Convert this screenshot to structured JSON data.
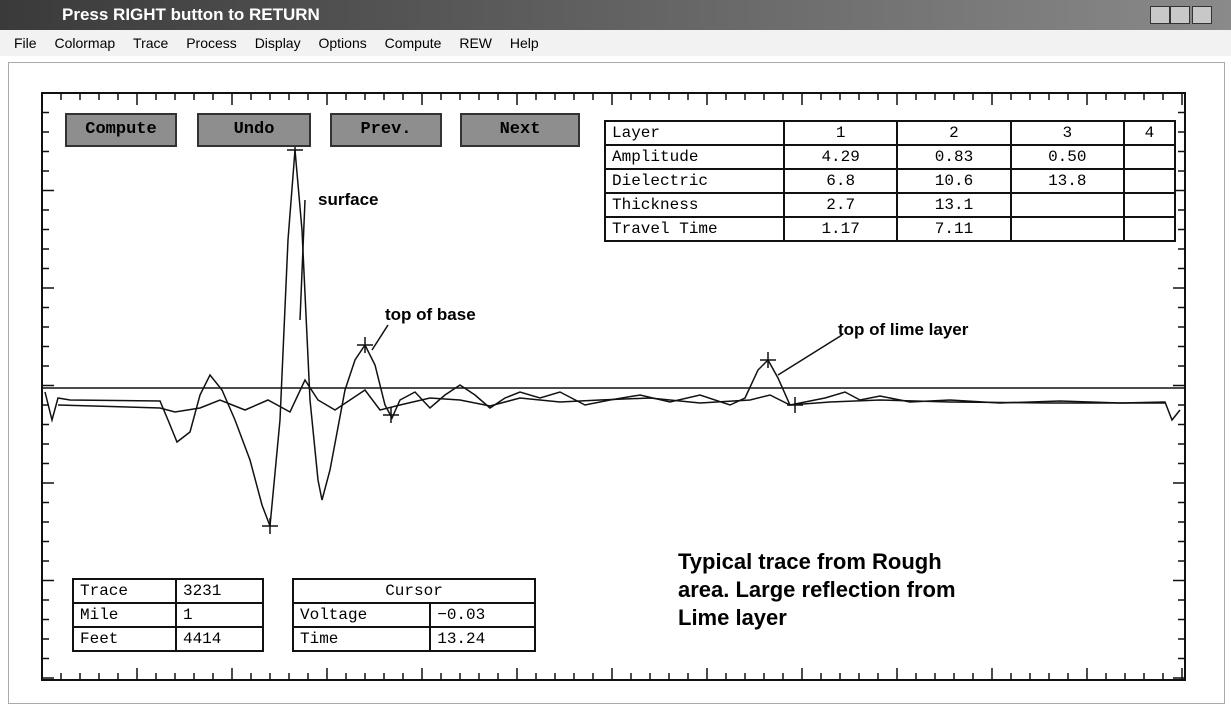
{
  "window": {
    "title": "Press RIGHT button to RETURN"
  },
  "menu": [
    "File",
    "Colormap",
    "Trace",
    "Process",
    "Display",
    "Options",
    "Compute",
    "REW",
    "Help"
  ],
  "buttons": [
    "Compute",
    "Undo",
    "Prev.",
    "Next"
  ],
  "layer_table": {
    "header": [
      "Layer",
      "1",
      "2",
      "3",
      "4"
    ],
    "rows": [
      [
        "Amplitude",
        "4.29",
        "0.83",
        "0.50"
      ],
      [
        "Dielectric",
        "6.8",
        "10.6",
        "13.8"
      ],
      [
        "Thickness",
        "2.7",
        "13.1"
      ],
      [
        "Travel Time",
        "1.17",
        "7.11"
      ]
    ]
  },
  "annotations": [
    "surface",
    "top of base",
    "top of lime layer"
  ],
  "trace_table": [
    [
      "Trace",
      "3231"
    ],
    [
      "Mile",
      "1"
    ],
    [
      "Feet",
      "4414"
    ]
  ],
  "cursor_table": {
    "title": "Cursor",
    "rows": [
      [
        "Voltage",
        "−0.03"
      ],
      [
        "Time",
        "13.24"
      ]
    ]
  },
  "caption": [
    "Typical trace from Rough",
    "area.  Large reflection from",
    "Lime layer"
  ]
}
